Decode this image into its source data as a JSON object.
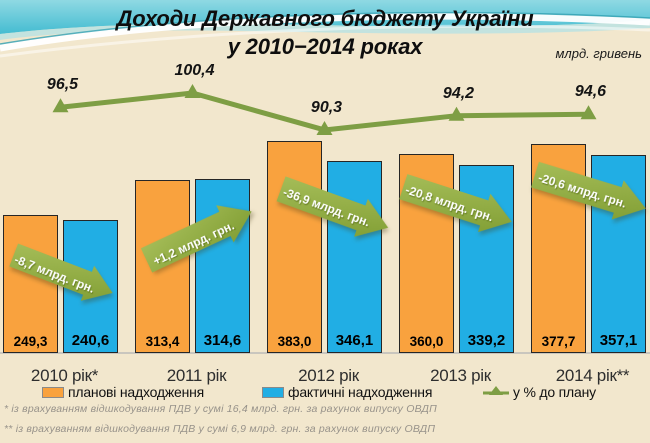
{
  "slide": {
    "title_line1": "Доходи Державного бюджету України",
    "title_line2": "у 2010−2014 роках",
    "unit_label": "млрд. гривень"
  },
  "chart_data": {
    "type": "bar",
    "title": "Доходи Державного бюджету України у 2010−2014 роках",
    "ylabel": "млрд. гривень",
    "categories": [
      "2010 рік*",
      "2011 рік",
      "2012 рік",
      "2013 рік",
      "2014 рік**"
    ],
    "series": [
      {
        "name": "планові надходження",
        "kind": "bar",
        "color": "#F9A23E",
        "values": [
          249.3,
          313.4,
          383.0,
          360.0,
          377.7
        ],
        "labels": [
          "249,3",
          "313,4",
          "383,0",
          "360,0",
          "377,7"
        ]
      },
      {
        "name": "фактичні надходження",
        "kind": "bar",
        "color": "#21AEE4",
        "values": [
          240.6,
          314.6,
          346.1,
          339.2,
          357.1
        ],
        "labels": [
          "240,6",
          "314,6",
          "346,1",
          "339,2",
          "357,1"
        ]
      },
      {
        "name": "у % до плану",
        "kind": "line",
        "color": "#7E9E44",
        "values": [
          96.5,
          100.4,
          90.3,
          94.2,
          94.6
        ],
        "labels": [
          "96,5",
          "100,4",
          "90,3",
          "94,2",
          "94,6"
        ]
      }
    ],
    "annotations": [
      {
        "label": "-8,7 млрд. грн.",
        "direction": "down-right"
      },
      {
        "label": "+1,2 млрд. грн.",
        "direction": "up-right"
      },
      {
        "label": "-36,9 млрд. грн.",
        "direction": "down-right"
      },
      {
        "label": "-20,8 млрд. грн.",
        "direction": "down-right"
      },
      {
        "label": "-20,6 млрд. грн.",
        "direction": "down-right"
      }
    ],
    "legend_position": "bottom",
    "grid": false
  },
  "footnotes": [
    "* із врахуванням відшкодування ПДВ у сумі 16,4 млрд. грн.  за рахунок випуску ОВДП",
    "** із врахуванням відшкодування ПДВ у сумі 6,9 млрд. грн. за рахунок випуску ОВДП"
  ],
  "colors": {
    "background": "#F2E7CD",
    "banner_teal": "#4CC0D4",
    "banner_teal_light": "#A9E0E8",
    "bar_plan": "#F9A23E",
    "bar_fact": "#21AEE4",
    "line_green": "#7E9E44",
    "arrow_green_light": "#A8BF5B",
    "arrow_green_dark": "#7E9C31",
    "axis_gray": "#C9C6BE"
  }
}
